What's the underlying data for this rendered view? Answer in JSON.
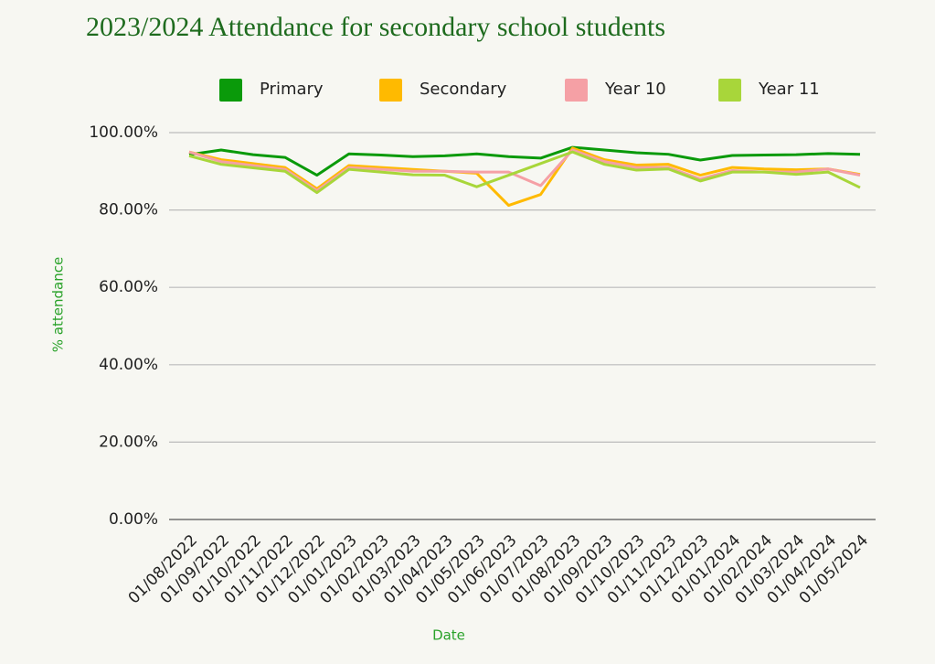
{
  "chart_data": {
    "type": "line",
    "title": "2023/2024 Attendance for secondary school students",
    "x_label": "Date",
    "y_label": "% attendance",
    "categories": [
      "01/08/2022",
      "01/09/2022",
      "01/10/2022",
      "01/11/2022",
      "01/12/2022",
      "01/01/2023",
      "01/02/2023",
      "01/03/2023",
      "01/04/2023",
      "01/05/2023",
      "01/06/2023",
      "01/07/2023",
      "01/08/2023",
      "01/09/2023",
      "01/10/2023",
      "01/11/2023",
      "01/12/2023",
      "01/01/2024",
      "01/02/2024",
      "01/03/2024",
      "01/04/2024",
      "01/05/2024"
    ],
    "series": [
      {
        "name": "Primary",
        "color": "#0a9a0a",
        "values": [
          94.3,
          95.5,
          94.3,
          93.6,
          89.0,
          94.5,
          94.2,
          93.8,
          94.0,
          94.5,
          93.8,
          93.4,
          96.2,
          95.5,
          94.8,
          94.4,
          92.9,
          94.1,
          94.2,
          94.3,
          94.6,
          94.4
        ]
      },
      {
        "name": "Secondary",
        "color": "#ffba00",
        "values": [
          95.0,
          93.0,
          92.0,
          91.0,
          85.5,
          91.5,
          91.0,
          90.5,
          90.0,
          89.5,
          81.2,
          84.0,
          96.0,
          93.0,
          91.6,
          91.8,
          89.0,
          91.0,
          90.6,
          90.4,
          90.6,
          89.2
        ]
      },
      {
        "name": "Year 10",
        "color": "#f5a0a5",
        "values": [
          95.0,
          92.5,
          91.5,
          90.5,
          85.0,
          91.0,
          90.5,
          90.0,
          90.0,
          89.8,
          89.8,
          86.3,
          95.5,
          92.5,
          91.0,
          91.0,
          88.0,
          90.2,
          89.8,
          89.8,
          90.6,
          89.0
        ]
      },
      {
        "name": "Year 11",
        "color": "#a8d63a",
        "values": [
          94.0,
          91.8,
          90.9,
          90.0,
          84.5,
          90.5,
          89.8,
          89.1,
          89.0,
          86.0,
          89.0,
          92.0,
          95.0,
          91.8,
          90.3,
          90.6,
          87.5,
          89.8,
          89.8,
          89.2,
          89.8,
          85.8
        ]
      }
    ],
    "ylim": [
      0,
      100
    ],
    "yticks": [
      {
        "value": 0,
        "label": "0.00%"
      },
      {
        "value": 20,
        "label": "20.00%"
      },
      {
        "value": 40,
        "label": "40.00%"
      },
      {
        "value": 60,
        "label": "60.00%"
      },
      {
        "value": 80,
        "label": "80.00%"
      },
      {
        "value": 100,
        "label": "100.00%"
      }
    ],
    "grid": true,
    "legend": "top"
  }
}
